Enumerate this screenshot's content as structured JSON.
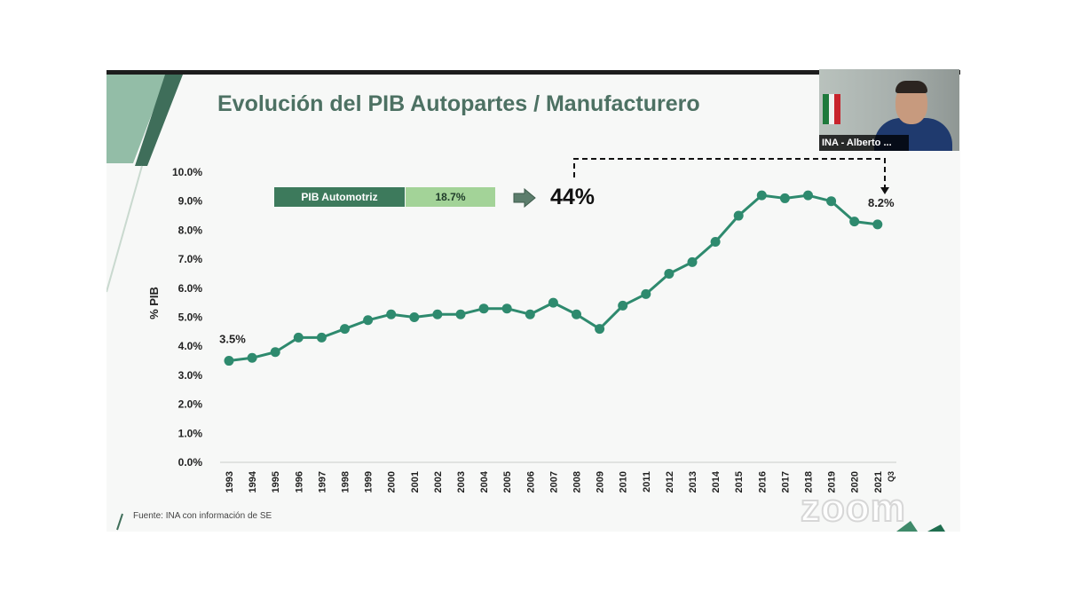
{
  "slide": {
    "title": "Evolución del PIB Autopartes / Manufacturero",
    "kpi_label": "PIB Automotriz",
    "kpi_value": "18.7%",
    "growth_label": "44%",
    "source": "Fuente:  INA con información de SE"
  },
  "video": {
    "participant_name": "INA - Alberto ...",
    "watermark": "zoom"
  },
  "colors": {
    "line": "#2e8a6e",
    "brand_green": "#3d7a5c",
    "light_green": "#a3d398",
    "title": "#4d7163"
  },
  "chart_data": {
    "type": "line",
    "ylabel": "% PIB",
    "ylim": [
      0,
      10
    ],
    "y_ticks": [
      "0.0%",
      "1.0%",
      "2.0%",
      "3.0%",
      "4.0%",
      "5.0%",
      "6.0%",
      "7.0%",
      "8.0%",
      "9.0%",
      "10.0%"
    ],
    "categories": [
      "1993",
      "1994",
      "1995",
      "1996",
      "1997",
      "1998",
      "1999",
      "2000",
      "2001",
      "2002",
      "2003",
      "2004",
      "2005",
      "2006",
      "2007",
      "2008",
      "2009",
      "2010",
      "2011",
      "2012",
      "2013",
      "2014",
      "2015",
      "2016",
      "2017",
      "2018",
      "2019",
      "2020",
      "2021"
    ],
    "extra_tick": "Q3",
    "values": [
      3.5,
      3.6,
      3.8,
      4.3,
      4.3,
      4.6,
      4.9,
      5.1,
      5.0,
      5.1,
      5.1,
      5.3,
      5.3,
      5.1,
      5.5,
      5.1,
      4.6,
      5.4,
      5.8,
      6.5,
      6.9,
      7.6,
      8.5,
      9.2,
      9.1,
      9.2,
      9.0,
      8.3,
      8.2
    ],
    "annotations": [
      {
        "category": "1993",
        "text": "3.5%"
      },
      {
        "category": "2021",
        "text": "8.2%"
      }
    ],
    "grid": false,
    "legend": "none"
  }
}
